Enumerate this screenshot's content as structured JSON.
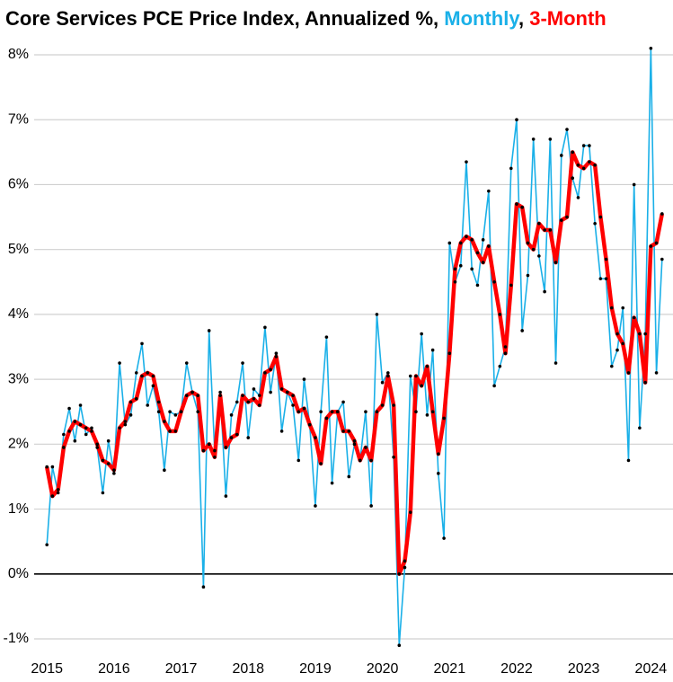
{
  "chart_data": {
    "type": "line",
    "title": "Core Services PCE Price Index, Annualized %,",
    "title_separator": ",",
    "x": [
      2015,
      2015.083,
      2015.167,
      2015.25,
      2015.333,
      2015.417,
      2015.5,
      2015.583,
      2015.667,
      2015.75,
      2015.833,
      2015.917,
      2016,
      2016.083,
      2016.167,
      2016.25,
      2016.333,
      2016.417,
      2016.5,
      2016.583,
      2016.667,
      2016.75,
      2016.833,
      2016.917,
      2017,
      2017.083,
      2017.167,
      2017.25,
      2017.333,
      2017.417,
      2017.5,
      2017.583,
      2017.667,
      2017.75,
      2017.833,
      2017.917,
      2018,
      2018.083,
      2018.167,
      2018.25,
      2018.333,
      2018.417,
      2018.5,
      2018.583,
      2018.667,
      2018.75,
      2018.833,
      2018.917,
      2019,
      2019.083,
      2019.167,
      2019.25,
      2019.333,
      2019.417,
      2019.5,
      2019.583,
      2019.667,
      2019.75,
      2019.833,
      2019.917,
      2020,
      2020.083,
      2020.167,
      2020.25,
      2020.333,
      2020.417,
      2020.5,
      2020.583,
      2020.667,
      2020.75,
      2020.833,
      2020.917,
      2021,
      2021.083,
      2021.167,
      2021.25,
      2021.333,
      2021.417,
      2021.5,
      2021.583,
      2021.667,
      2021.75,
      2021.833,
      2021.917,
      2022,
      2022.083,
      2022.167,
      2022.25,
      2022.333,
      2022.417,
      2022.5,
      2022.583,
      2022.667,
      2022.75,
      2022.833,
      2022.917,
      2023,
      2023.083,
      2023.167,
      2023.25,
      2023.333,
      2023.417,
      2023.5,
      2023.583,
      2023.667,
      2023.75,
      2023.833,
      2023.917,
      2024,
      2024.083,
      2024.167
    ],
    "series": [
      {
        "name": "Monthly",
        "color": "#1ab0e8",
        "values": [
          0.45,
          1.65,
          1.25,
          2.15,
          2.55,
          2.05,
          2.6,
          2.15,
          2.25,
          1.95,
          1.25,
          2.05,
          1.55,
          3.25,
          2.3,
          2.45,
          3.1,
          3.55,
          2.6,
          2.9,
          2.5,
          1.6,
          2.5,
          2.45,
          2.5,
          3.25,
          2.8,
          2.5,
          -0.2,
          3.75,
          1.9,
          2.8,
          1.2,
          2.45,
          2.65,
          3.25,
          2.1,
          2.85,
          2.75,
          3.8,
          2.8,
          3.4,
          2.2,
          2.8,
          2.6,
          1.75,
          3.0,
          2.3,
          1.05,
          2.5,
          3.65,
          1.4,
          2.5,
          2.65,
          1.5,
          2.0,
          1.75,
          2.5,
          1.05,
          4.0,
          2.95,
          3.1,
          1.8,
          -1.1,
          0.1,
          3.05,
          2.5,
          3.7,
          2.45,
          3.45,
          1.55,
          0.55,
          5.1,
          4.5,
          4.75,
          6.35,
          4.7,
          4.45,
          5.15,
          5.9,
          2.9,
          3.2,
          3.5,
          6.25,
          7.0,
          3.75,
          4.6,
          6.7,
          4.9,
          4.35,
          6.7,
          3.25,
          6.45,
          6.85,
          6.1,
          5.8,
          6.6,
          6.6,
          5.4,
          4.55,
          4.55,
          3.2,
          3.45,
          4.1,
          1.75,
          6.0,
          2.25,
          3.7,
          8.1,
          3.1,
          4.85
        ]
      },
      {
        "name": "3-Month",
        "color": "#ff0000",
        "values": [
          1.65,
          1.2,
          1.3,
          1.95,
          2.2,
          2.35,
          2.3,
          2.25,
          2.2,
          2.0,
          1.75,
          1.7,
          1.6,
          2.25,
          2.35,
          2.65,
          2.7,
          3.05,
          3.1,
          3.05,
          2.65,
          2.35,
          2.2,
          2.2,
          2.5,
          2.75,
          2.8,
          2.75,
          1.9,
          2.0,
          1.8,
          2.75,
          1.95,
          2.1,
          2.15,
          2.75,
          2.65,
          2.7,
          2.6,
          3.1,
          3.15,
          3.35,
          2.85,
          2.8,
          2.75,
          2.5,
          2.55,
          2.3,
          2.1,
          1.7,
          2.4,
          2.5,
          2.5,
          2.2,
          2.2,
          2.05,
          1.75,
          1.95,
          1.75,
          2.5,
          2.6,
          3.05,
          2.6,
          0.0,
          0.2,
          0.95,
          3.05,
          2.9,
          3.2,
          2.5,
          1.85,
          2.4,
          3.4,
          4.7,
          5.1,
          5.2,
          5.15,
          4.95,
          4.8,
          5.05,
          4.5,
          4.0,
          3.4,
          4.45,
          5.7,
          5.65,
          5.1,
          5.0,
          5.4,
          5.3,
          5.3,
          4.8,
          5.45,
          5.5,
          6.5,
          6.3,
          6.25,
          6.35,
          6.3,
          5.5,
          4.85,
          4.1,
          3.7,
          3.55,
          3.1,
          3.95,
          3.7,
          2.95,
          5.05,
          5.1,
          5.55
        ]
      }
    ],
    "xlim": [
      2014.81,
      2024.33
    ],
    "xticks": [
      2015,
      2016,
      2017,
      2018,
      2019,
      2020,
      2021,
      2022,
      2023,
      2024
    ],
    "ylim": [
      -1,
      8
    ],
    "yticks": [
      {
        "value": -1,
        "label": "-1%"
      },
      {
        "value": 0,
        "label": "0%"
      },
      {
        "value": 1,
        "label": "1%"
      },
      {
        "value": 2,
        "label": "2%"
      },
      {
        "value": 3,
        "label": "3%"
      },
      {
        "value": 4,
        "label": "4%"
      },
      {
        "value": 5,
        "label": "5%"
      },
      {
        "value": 6,
        "label": "6%"
      },
      {
        "value": 7,
        "label": "7%"
      },
      {
        "value": 8,
        "label": "8%"
      }
    ],
    "grid": true,
    "marker_color": "#000000"
  }
}
